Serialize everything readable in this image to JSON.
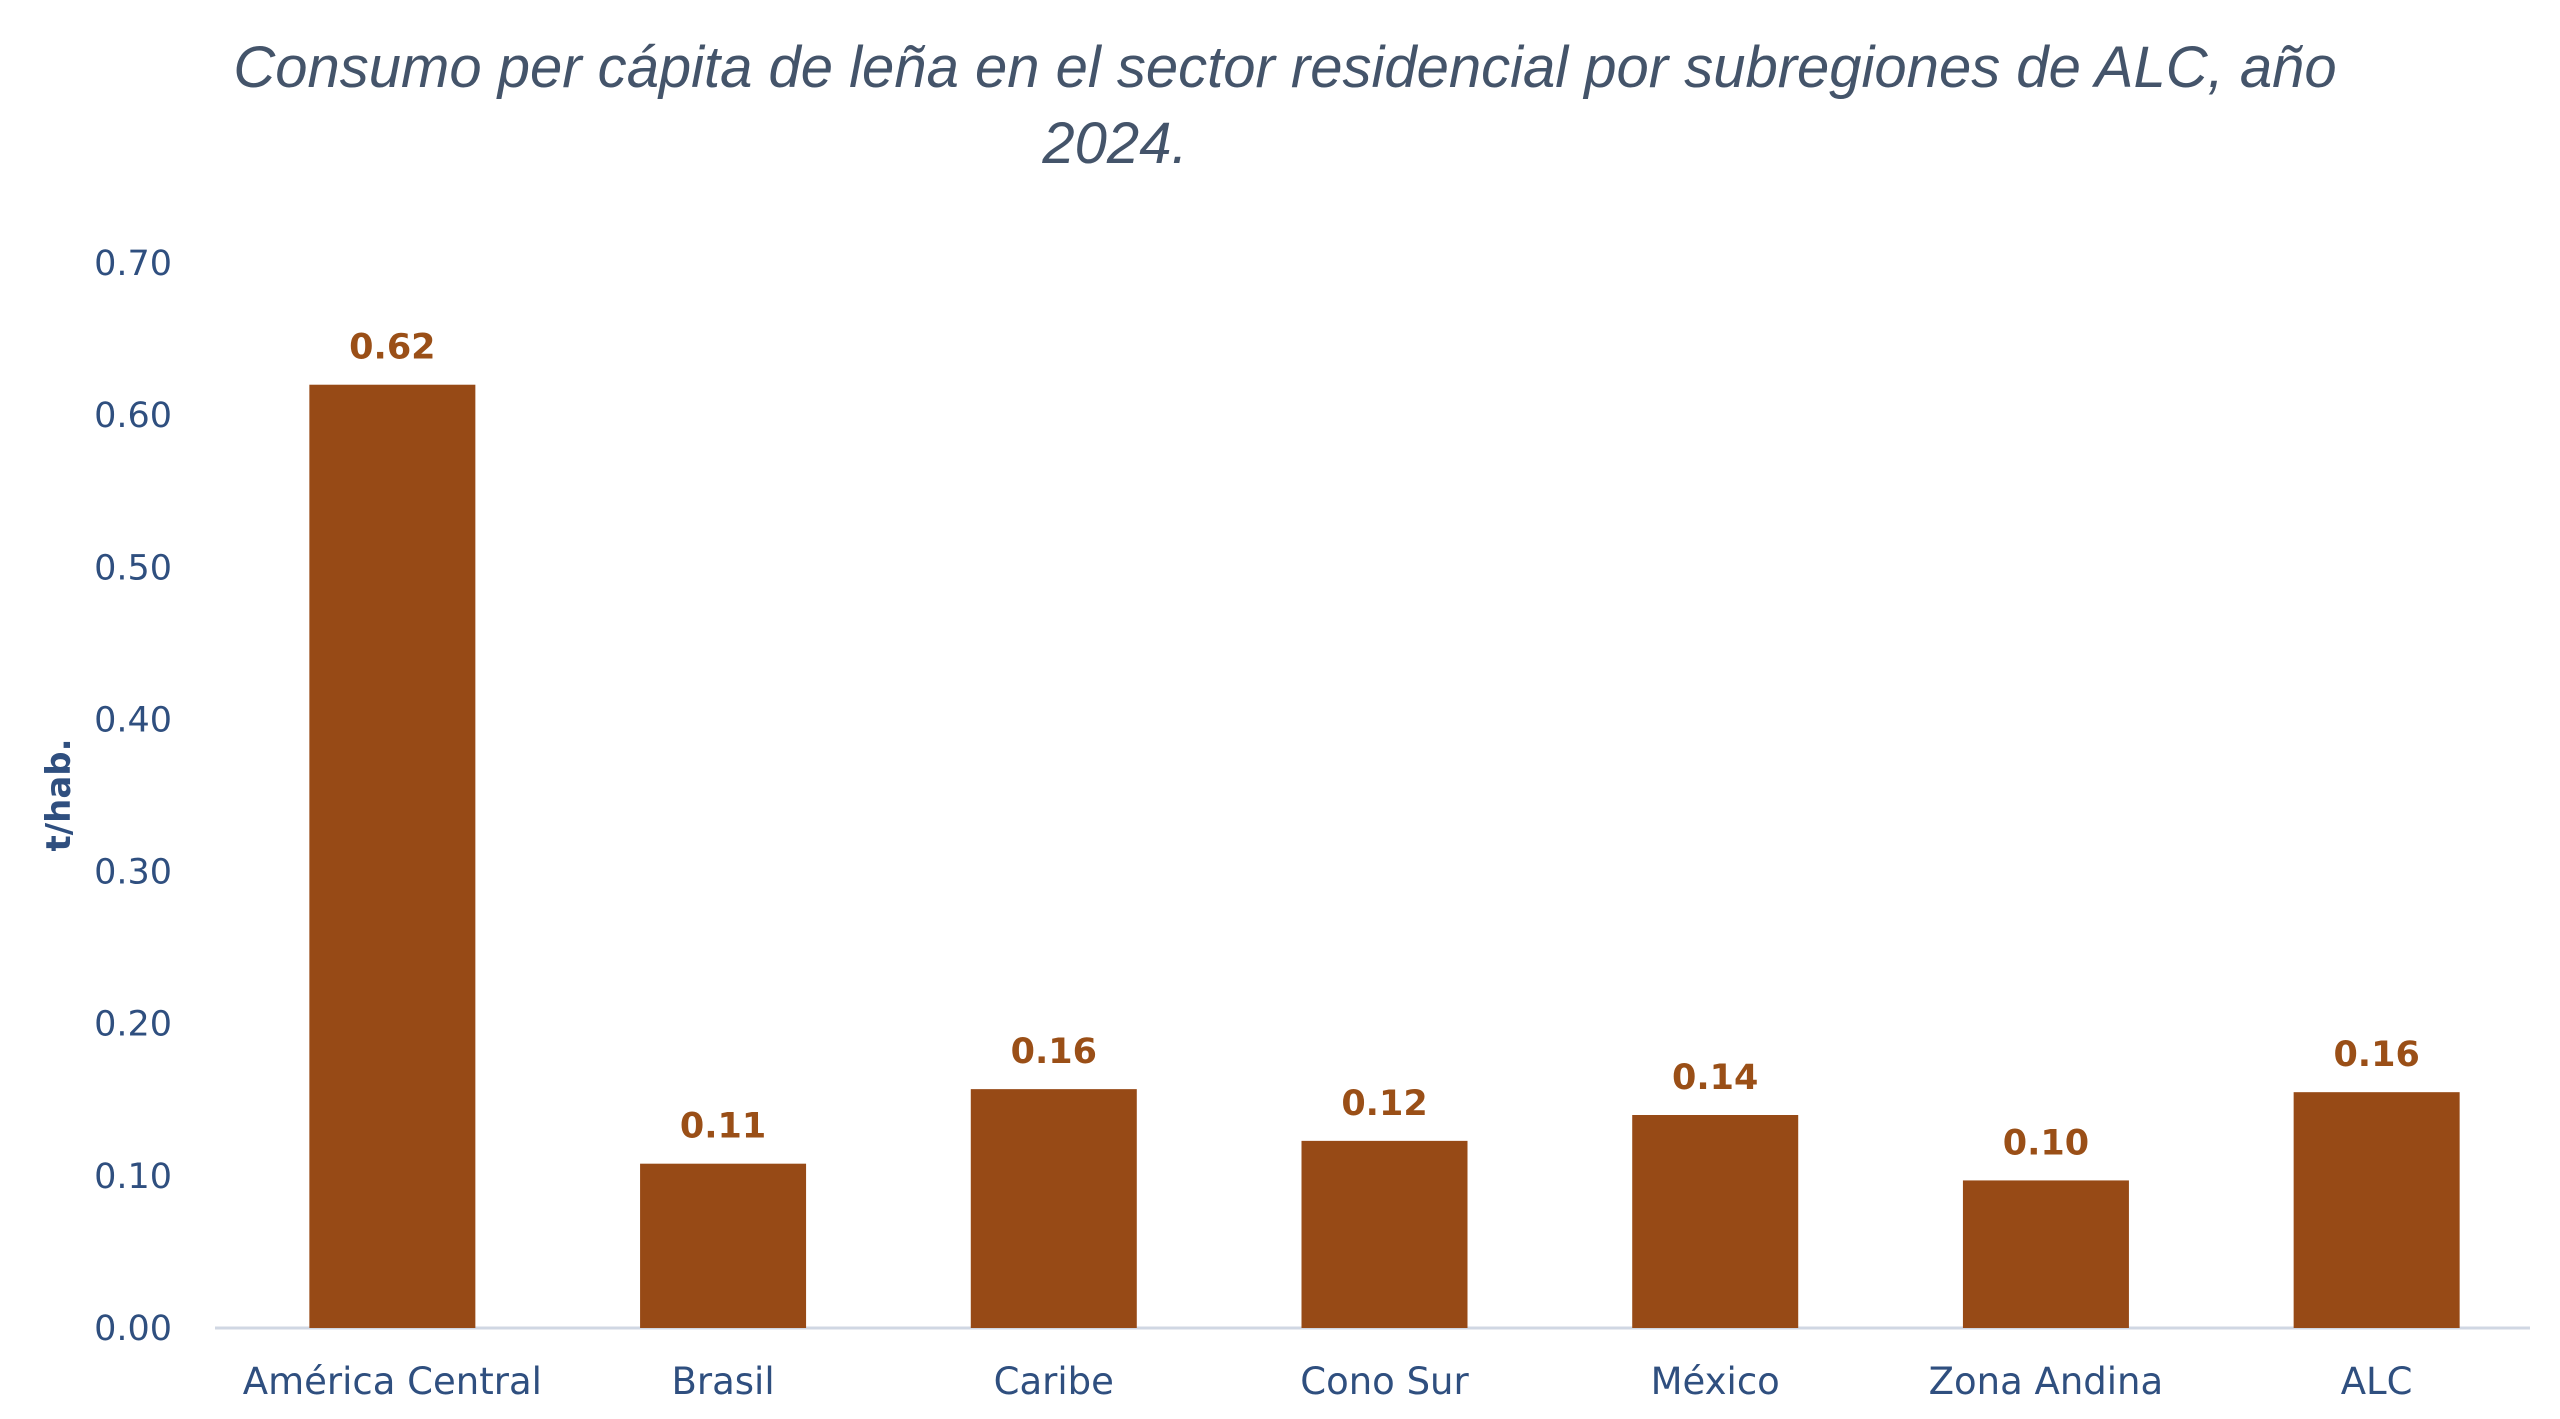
{
  "chart_data": {
    "type": "bar",
    "title_line1": "Consumo per cápita de leña en el sector residencial por subregiones de ALC, año",
    "title_line2": "2024.",
    "ylabel": "t/hab.",
    "xlabel": "",
    "ylim": [
      0,
      0.7
    ],
    "yticks": [
      "0.00",
      "0.10",
      "0.20",
      "0.30",
      "0.40",
      "0.50",
      "0.60",
      "0.70"
    ],
    "categories": [
      "América Central",
      "Brasil",
      "Caribe",
      "Cono Sur",
      "México",
      "Zona Andina",
      "ALC"
    ],
    "values": [
      0.62,
      0.108,
      0.157,
      0.123,
      0.14,
      0.097,
      0.155
    ],
    "data_labels": [
      "0.62",
      "0.11",
      "0.16",
      "0.12",
      "0.14",
      "0.10",
      "0.16"
    ],
    "bar_color": "#974A16",
    "grid": false,
    "legend": "none"
  }
}
